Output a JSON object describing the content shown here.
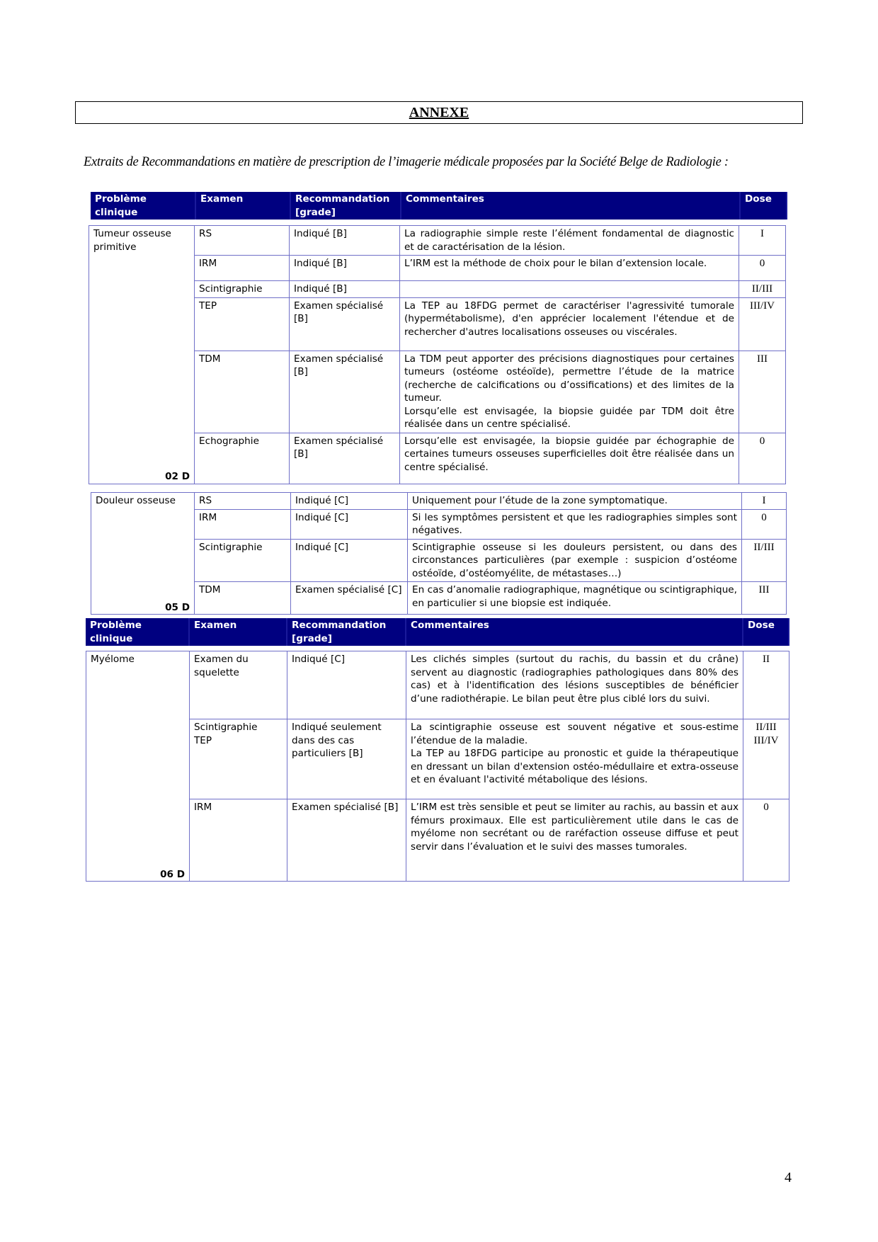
{
  "title": "ANNEXE",
  "intro": "Extraits de Recommandations en matière de prescription de l’imagerie médicale proposées par la Société Belge de Radiologie :",
  "header": {
    "probleme": "Problème clinique",
    "examen": "Examen",
    "recommandation": "Recommandation [grade]",
    "commentaires": "Commentaires",
    "dose": "Dose"
  },
  "tables": [
    {
      "probleme": "Tumeur osseuse primitive",
      "code": "02 D",
      "rows": [
        {
          "examen": "RS",
          "recommandation": "Indiqué [B]",
          "commentaire": "La radiographie simple reste l’élément fondamental de diagnostic et de caractérisation de la lésion.",
          "dose": "I"
        },
        {
          "examen": "IRM",
          "recommandation": "Indiqué [B]",
          "commentaire": "L’IRM est la méthode de choix pour le bilan d’extension locale.",
          "dose": "0"
        },
        {
          "examen": "Scintigraphie",
          "recommandation": "Indiqué [B]",
          "commentaire": "",
          "dose": "II/III"
        },
        {
          "examen": "TEP",
          "recommandation": "Examen spécialisé [B]",
          "commentaire": "La TEP au 18FDG permet de caractériser l'agressivité tumorale (hypermétabolisme), d'en apprécier localement l'étendue et de rechercher d'autres localisations osseuses ou viscérales.",
          "dose": "III/IV"
        },
        {
          "examen": "TDM",
          "recommandation": "Examen spécialisé [B]",
          "commentaire": "La TDM peut apporter des précisions diagnostiques pour certaines tumeurs (ostéome ostéoïde), permettre l’étude de la matrice (recherche de calcifications ou d’ossifications) et des limites de la tumeur.\nLorsqu’elle est envisagée, la biopsie guidée par TDM doit être réalisée dans un centre spécialisé.",
          "dose": "III"
        },
        {
          "examen": "Echographie",
          "recommandation": "Examen spécialisé [B]",
          "commentaire": "Lorsqu’elle est envisagée, la biopsie guidée par échographie de certaines tumeurs osseuses superficielles doit être réalisée dans un centre spécialisé.",
          "dose": "0"
        }
      ]
    },
    {
      "probleme": "Douleur osseuse",
      "code": "05 D",
      "rows": [
        {
          "examen": "RS",
          "recommandation": "Indiqué [C]",
          "commentaire": "Uniquement pour l’étude de la zone symptomatique.",
          "dose": "I"
        },
        {
          "examen": "IRM",
          "recommandation": "Indiqué [C]",
          "commentaire": "Si les symptômes persistent et que les radiographies simples sont négatives.",
          "dose": "0"
        },
        {
          "examen": "Scintigraphie",
          "recommandation": "Indiqué [C]",
          "commentaire": "Scintigraphie osseuse si les douleurs persistent, ou dans des circonstances particulières (par exemple : suspicion d’ostéome ostéoïde, d’ostéomyélite, de métastases…)",
          "dose": "II/III"
        },
        {
          "examen": "TDM",
          "recommandation": "Examen spécialisé [C]",
          "commentaire": "En cas d’anomalie radiographique, magnétique ou scintigraphique, en particulier si une biopsie est indiquée.",
          "dose": "III"
        }
      ]
    },
    {
      "probleme": "Myélome",
      "code": "06 D",
      "rows": [
        {
          "examen": "Examen du squelette",
          "recommandation": "Indiqué [C]",
          "commentaire": "Les clichés simples (surtout du rachis, du bassin et du crâne) servent au diagnostic (radiographies pathologiques dans 80% des cas) et à l'identification des lésions susceptibles de bénéficier d’une radiothérapie. Le bilan peut être plus ciblé lors du suivi.",
          "dose": "II"
        },
        {
          "examen": "Scintigraphie\nTEP",
          "recommandation": "Indiqué seulement dans des cas particuliers [B]",
          "commentaire": "La scintigraphie osseuse est souvent négative et sous-estime l’étendue de la maladie.\nLa TEP au 18FDG participe au pronostic et guide la thérapeutique en dressant un bilan d'extension ostéo-médullaire et extra-osseuse et en évaluant l'activité métabolique des lésions.",
          "dose": "II/III\nIII/IV"
        },
        {
          "examen": "IRM",
          "recommandation": "Examen spécialisé [B]",
          "commentaire": "L’IRM est très sensible et peut se limiter au rachis, au bassin et aux fémurs proximaux. Elle est particulièrement utile dans le cas de myélome non secrétant ou de raréfaction osseuse diffuse et peut servir dans l’évaluation et le suivi des masses tumorales.",
          "dose": "0"
        }
      ]
    }
  ],
  "page_number": "4"
}
